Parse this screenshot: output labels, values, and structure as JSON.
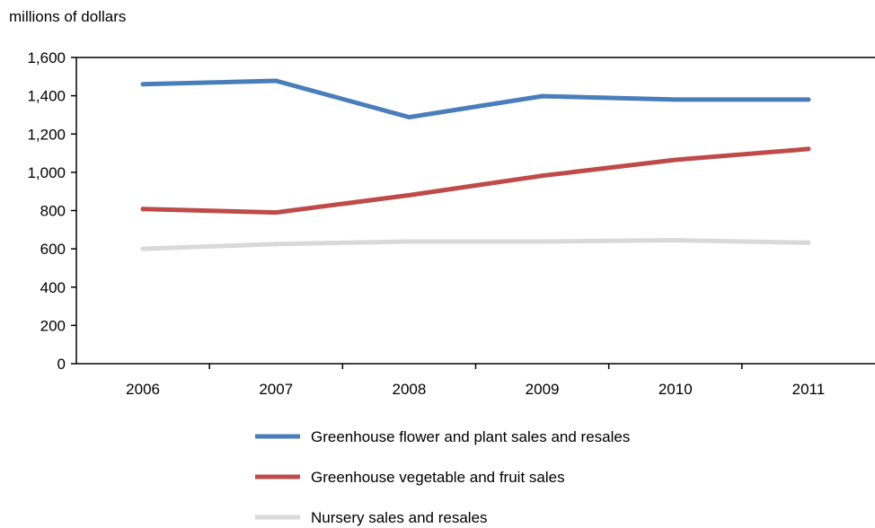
{
  "chart_data": {
    "type": "line",
    "ylabel": "millions of dollars",
    "x": [
      "2006",
      "2007",
      "2008",
      "2009",
      "2010",
      "2011"
    ],
    "ylim": [
      0,
      1600
    ],
    "yticks": [
      0,
      200,
      400,
      600,
      800,
      1000,
      1200,
      1400,
      1600
    ],
    "ytick_labels": [
      "0",
      "200",
      "400",
      "600",
      "800",
      "1,000",
      "1,200",
      "1,400",
      "1,600"
    ],
    "grid": false,
    "legend_position": "bottom",
    "series": [
      {
        "name": "Greenhouse flower and plant sales and resales",
        "color": "#4a7ebb",
        "values": [
          1460,
          1478,
          1288,
          1398,
          1380,
          1380
        ]
      },
      {
        "name": "Greenhouse vegetable and fruit sales",
        "color": "#be4b48",
        "values": [
          808,
          790,
          880,
          982,
          1065,
          1122
        ]
      },
      {
        "name": "Nursery sales and resales",
        "color": "#d9d9d9",
        "values": [
          600,
          625,
          638,
          638,
          645,
          632
        ]
      }
    ]
  }
}
